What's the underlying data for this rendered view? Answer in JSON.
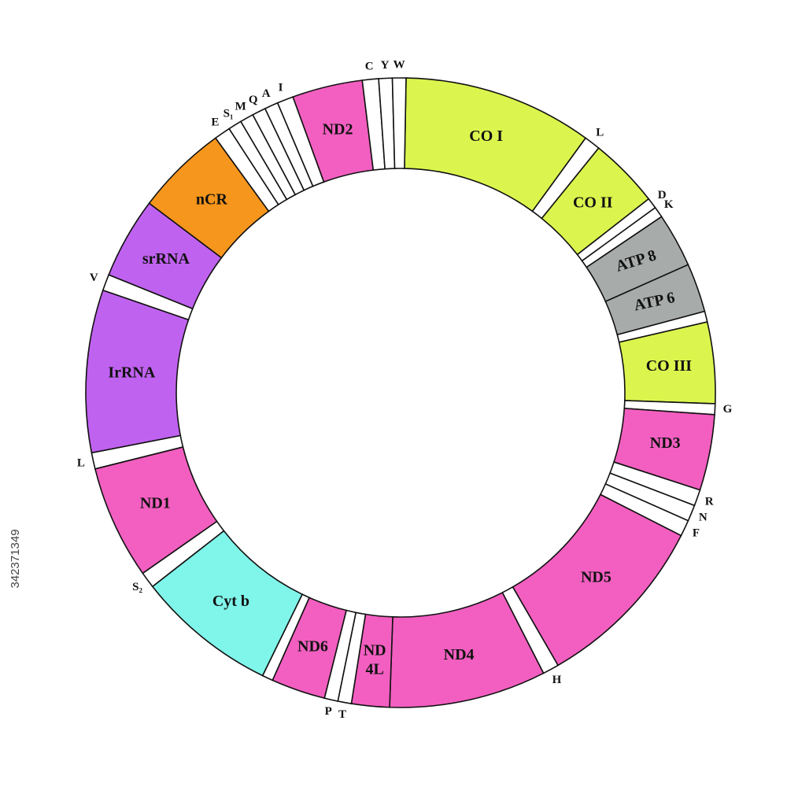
{
  "segments": [
    {
      "label": "CO I"
    },
    {
      "label": "L"
    },
    {
      "label": "CO II"
    },
    {
      "label": "D"
    },
    {
      "label": "K"
    },
    {
      "label": "ATP 8"
    },
    {
      "label": "ATP 6"
    },
    {
      "label": "CO III"
    },
    {
      "label": "G"
    },
    {
      "label": "ND3"
    },
    {
      "label": "R"
    },
    {
      "label": "N"
    },
    {
      "label": "F"
    },
    {
      "label": "ND5"
    },
    {
      "label": "H"
    },
    {
      "label": "ND4"
    },
    {
      "lines": [
        "ND",
        "4L"
      ]
    },
    {
      "label": "T"
    },
    {
      "label": "P"
    },
    {
      "label": "ND6"
    },
    {
      "label": "Cyt b"
    },
    {
      "label": "S₂"
    },
    {
      "label": "ND1"
    },
    {
      "label": "L"
    },
    {
      "label": "IrRNA"
    },
    {
      "label": "V"
    },
    {
      "label": "srRNA"
    },
    {
      "label": "nCR"
    },
    {
      "label": "E"
    },
    {
      "label": "S₁"
    },
    {
      "label": "M"
    },
    {
      "label": "Q"
    },
    {
      "label": "A"
    },
    {
      "label": "I"
    },
    {
      "label": "ND2"
    },
    {
      "label": "C"
    },
    {
      "label": "Y"
    },
    {
      "label": "W"
    }
  ],
  "watermark": "342371349"
}
